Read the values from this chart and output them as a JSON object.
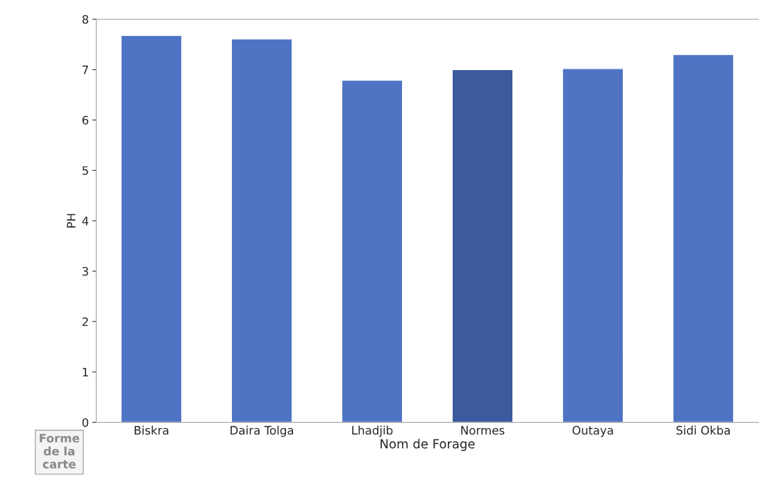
{
  "chart_data": {
    "type": "bar",
    "categories": [
      "Biskra",
      "Daira Tolga",
      "Lhadjib",
      "Normes",
      "Outaya",
      "Sidi Okba"
    ],
    "values": [
      7.68,
      7.61,
      6.79,
      7.0,
      7.02,
      7.3
    ],
    "colors": [
      "#5074c4",
      "#5074c4",
      "#5074c4",
      "#3d5a9e",
      "#5074c4",
      "#5074c4"
    ],
    "xlabel": "Nom de Forage",
    "ylabel": "PH",
    "ylim": [
      0,
      8
    ],
    "yticks": [
      0,
      1,
      2,
      3,
      4,
      5,
      6,
      7,
      8
    ],
    "grid": false,
    "legend": false,
    "annotations": [
      "Forme\nde la\ncarte"
    ]
  }
}
